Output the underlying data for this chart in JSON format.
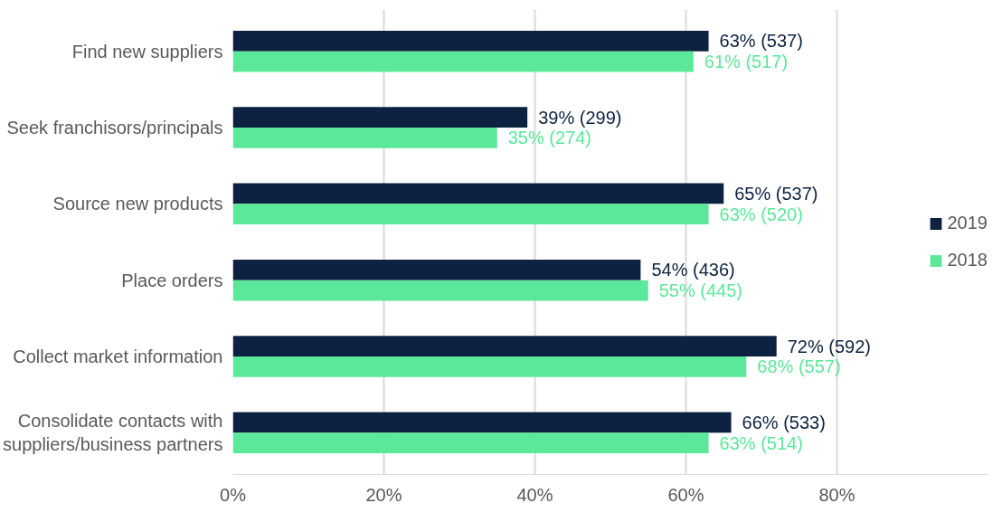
{
  "chart_data": {
    "type": "bar",
    "orientation": "horizontal",
    "categories": [
      "Find new suppliers",
      "Seek franchisors/principals",
      "Source new products",
      "Place orders",
      "Collect market information",
      "Consolidate contacts with\nsuppliers/business partners"
    ],
    "series": [
      {
        "name": "2019",
        "color": "#0d2240",
        "values": [
          63,
          39,
          65,
          54,
          72,
          66
        ],
        "value_labels": [
          "63% (537)",
          "39% (299)",
          "65% (537)",
          "54% (436)",
          "72% (592)",
          "66% (533)"
        ]
      },
      {
        "name": "2018",
        "color": "#5ce89a",
        "values": [
          61,
          35,
          63,
          55,
          68,
          63
        ],
        "value_labels": [
          "61% (517)",
          "35% (274)",
          "63% (520)",
          "55% (445)",
          "68% (557)",
          "63% (514)"
        ]
      }
    ],
    "xlim": [
      0,
      100
    ],
    "xticks": [
      {
        "value": 0,
        "label": "0%"
      },
      {
        "value": 20,
        "label": "20%"
      },
      {
        "value": 40,
        "label": "40%"
      },
      {
        "value": 60,
        "label": "60%"
      },
      {
        "value": 80,
        "label": "80%"
      }
    ],
    "grid": "x",
    "legend": "right"
  }
}
